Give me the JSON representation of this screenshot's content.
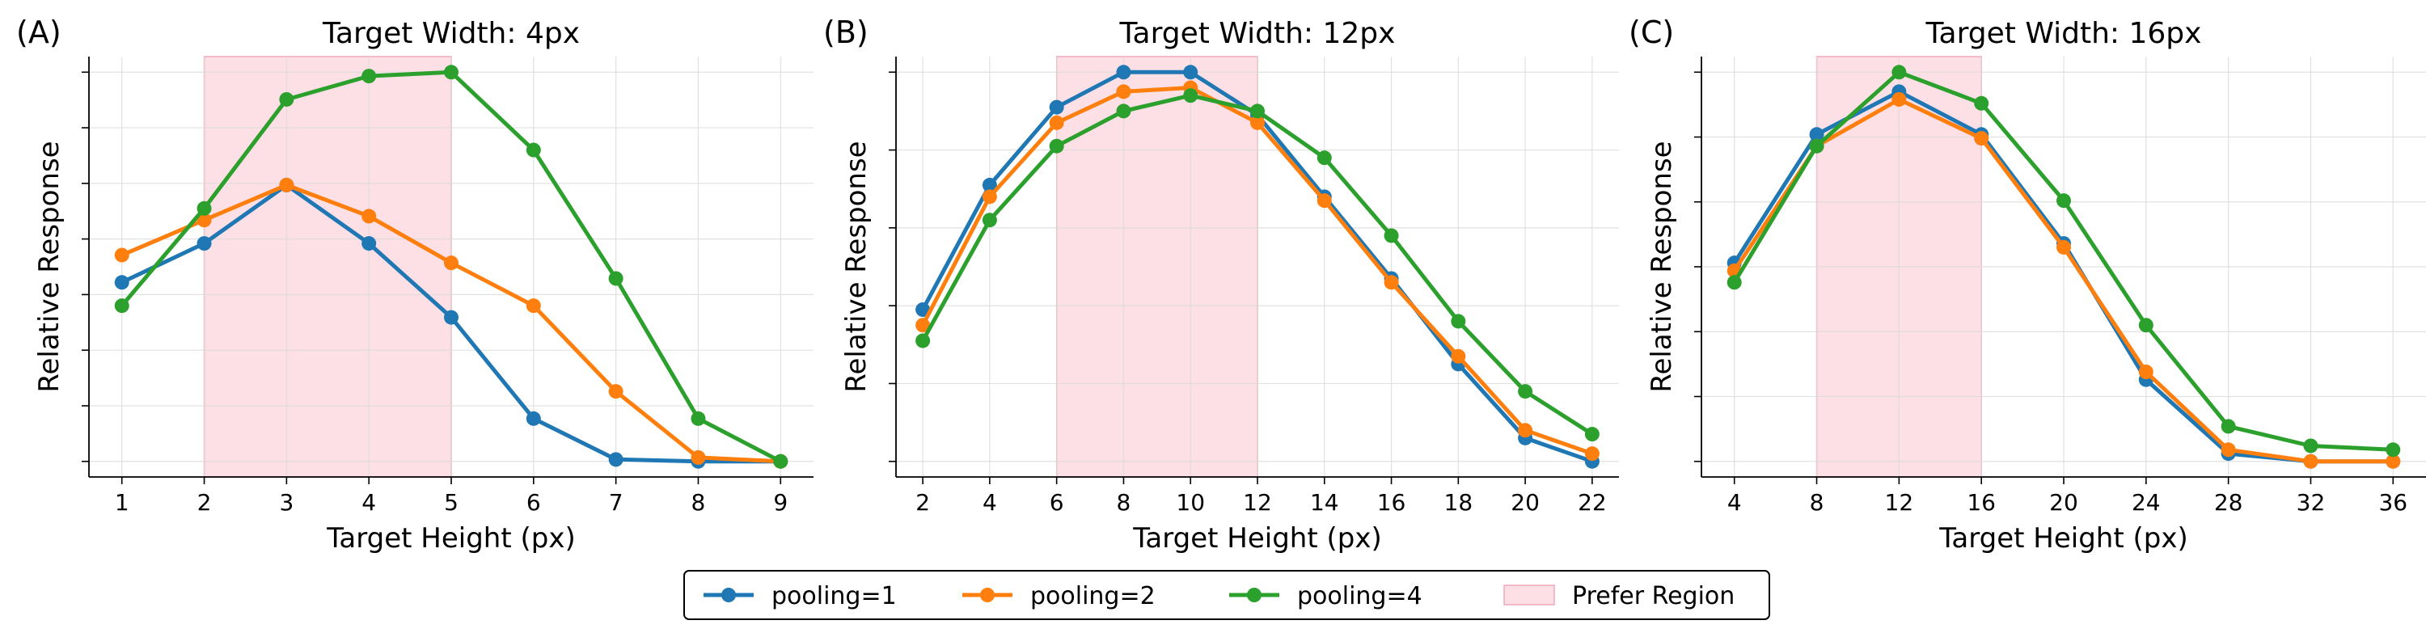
{
  "chart_data": [
    {
      "type": "line",
      "panel_label": "(A)",
      "title": "Target Width: 4px",
      "xlabel": "Target Height (px)",
      "ylabel": "Relative Response",
      "x": [
        1,
        2,
        3,
        4,
        5,
        6,
        7,
        8,
        9
      ],
      "xlim": [
        0.6,
        9.4
      ],
      "ylim": [
        -0.04,
        1.04
      ],
      "y_tick_labels_shown": false,
      "y_tick_count": 8,
      "grid": true,
      "shaded_region": {
        "name": "Prefer Region",
        "x_start": 2,
        "x_end": 5
      },
      "series": [
        {
          "name": "pooling=1",
          "color": "#1f77b4",
          "values": [
            0.46,
            0.56,
            0.71,
            0.56,
            0.37,
            0.11,
            0.005,
            0.0,
            0.0
          ]
        },
        {
          "name": "pooling=2",
          "color": "#ff7f0e",
          "values": [
            0.53,
            0.62,
            0.71,
            0.63,
            0.51,
            0.4,
            0.18,
            0.01,
            0.0
          ]
        },
        {
          "name": "pooling=4",
          "color": "#2ca02c",
          "values": [
            0.4,
            0.65,
            0.93,
            0.99,
            1.0,
            0.8,
            0.47,
            0.11,
            0.0
          ]
        }
      ]
    },
    {
      "type": "line",
      "panel_label": "(B)",
      "title": "Target Width: 12px",
      "xlabel": "Target Height (px)",
      "ylabel": "Relative Response",
      "x": [
        2,
        4,
        6,
        8,
        10,
        12,
        14,
        16,
        18,
        20,
        22
      ],
      "xlim": [
        1.2,
        22.8
      ],
      "ylim": [
        -0.04,
        1.04
      ],
      "y_tick_labels_shown": false,
      "y_tick_count": 6,
      "grid": true,
      "shaded_region": {
        "name": "Prefer Region",
        "x_start": 6,
        "x_end": 12
      },
      "series": [
        {
          "name": "pooling=1",
          "color": "#1f77b4",
          "values": [
            0.39,
            0.71,
            0.91,
            1.0,
            1.0,
            0.89,
            0.68,
            0.47,
            0.25,
            0.06,
            0.0
          ]
        },
        {
          "name": "pooling=2",
          "color": "#ff7f0e",
          "values": [
            0.35,
            0.68,
            0.87,
            0.95,
            0.96,
            0.87,
            0.67,
            0.46,
            0.27,
            0.08,
            0.02
          ]
        },
        {
          "name": "pooling=4",
          "color": "#2ca02c",
          "values": [
            0.31,
            0.62,
            0.81,
            0.9,
            0.94,
            0.9,
            0.78,
            0.58,
            0.36,
            0.18,
            0.07
          ]
        }
      ]
    },
    {
      "type": "line",
      "panel_label": "(C)",
      "title": "Target Width: 16px",
      "xlabel": "Target Height (px)",
      "ylabel": "Relative Response",
      "x": [
        4,
        8,
        12,
        16,
        20,
        24,
        28,
        32,
        36
      ],
      "xlim": [
        2.4,
        37.6
      ],
      "ylim": [
        -0.04,
        1.04
      ],
      "y_tick_labels_shown": false,
      "y_tick_count": 7,
      "grid": true,
      "shaded_region": {
        "name": "Prefer Region",
        "x_start": 8,
        "x_end": 16
      },
      "series": [
        {
          "name": "pooling=1",
          "color": "#1f77b4",
          "values": [
            0.51,
            0.84,
            0.95,
            0.84,
            0.56,
            0.21,
            0.02,
            0.0,
            0.0
          ]
        },
        {
          "name": "pooling=2",
          "color": "#ff7f0e",
          "values": [
            0.49,
            0.81,
            0.93,
            0.83,
            0.55,
            0.23,
            0.03,
            0.0,
            0.0
          ]
        },
        {
          "name": "pooling=4",
          "color": "#2ca02c",
          "values": [
            0.46,
            0.81,
            1.0,
            0.92,
            0.67,
            0.35,
            0.09,
            0.04,
            0.03
          ]
        }
      ]
    }
  ],
  "legend": {
    "placement": "bottom-center",
    "entries": [
      {
        "label": "pooling=1",
        "kind": "line",
        "color": "#1f77b4"
      },
      {
        "label": "pooling=2",
        "kind": "line",
        "color": "#ff7f0e"
      },
      {
        "label": "pooling=4",
        "kind": "line",
        "color": "#2ca02c"
      },
      {
        "label": "Prefer Region",
        "kind": "patch",
        "color": "#fde0e6"
      }
    ]
  }
}
